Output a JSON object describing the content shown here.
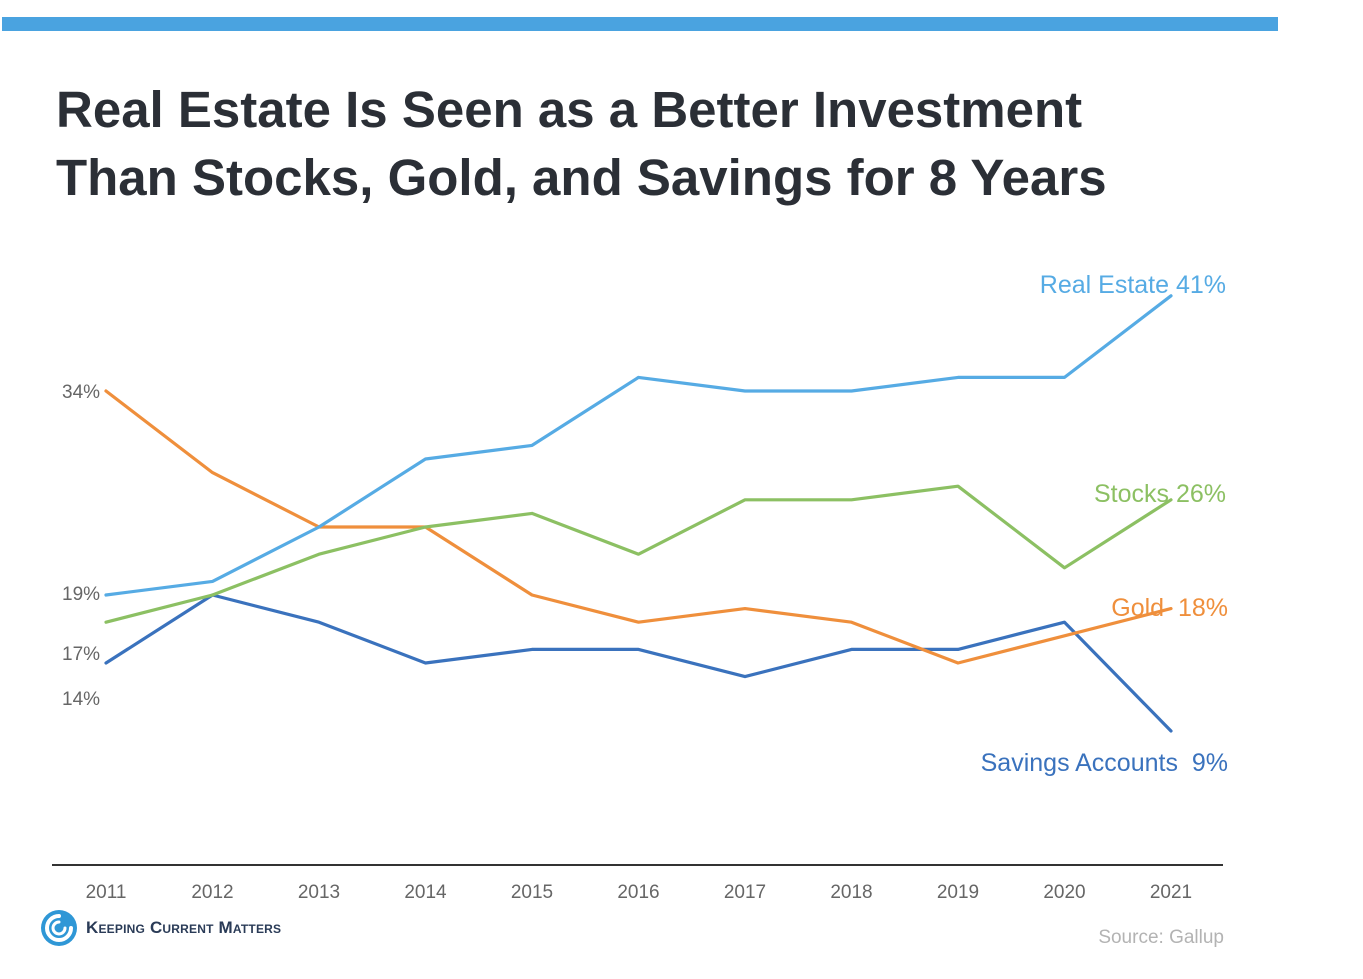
{
  "title_lines": [
    "Real Estate Is Seen as a Better Investment",
    "Than Stocks, Gold, and Savings for 8 Years"
  ],
  "logo": {
    "text": "Keeping Current Matters",
    "icon": "kcm-swirl-icon"
  },
  "source": "Source: Gallup",
  "colors": {
    "accent_bar": "#4aa3e0",
    "real_estate": "#56abe4",
    "stocks": "#8cc063",
    "gold": "#ef8f3c",
    "savings": "#3a72bd",
    "axis": "#333333",
    "tick_text": "#666666"
  },
  "chart_data": {
    "type": "line",
    "title": "Real Estate Is Seen as a Better Investment Than Stocks, Gold, and Savings for 8 Years",
    "xlabel": "",
    "ylabel": "",
    "ylim": [
      5,
      43
    ],
    "grid": false,
    "x": [
      "2011",
      "2012",
      "2013",
      "2014",
      "2015",
      "2016",
      "2017",
      "2018",
      "2019",
      "2020",
      "2021"
    ],
    "series": [
      {
        "name": "Real Estate",
        "label": "Real Estate 41%",
        "color": "#56abe4",
        "values": [
          19,
          20,
          24,
          29,
          30,
          35,
          34,
          34,
          35,
          35,
          41
        ]
      },
      {
        "name": "Stocks",
        "label": "Stocks 26%",
        "color": "#8cc063",
        "values": [
          17,
          19,
          22,
          24,
          25,
          22,
          26,
          26,
          27,
          21,
          26
        ]
      },
      {
        "name": "Gold",
        "label": "Gold  18%",
        "color": "#ef8f3c",
        "values": [
          34,
          28,
          24,
          24,
          19,
          17,
          18,
          17,
          14,
          16,
          18
        ]
      },
      {
        "name": "Savings Accounts",
        "label": "Savings Accounts  9%",
        "color": "#3a72bd",
        "values": [
          14,
          19,
          17,
          14,
          15,
          15,
          13,
          15,
          15,
          17,
          9
        ]
      }
    ],
    "start_labels": [
      {
        "text": "34%",
        "value": 34
      },
      {
        "text": "19%",
        "value": 19
      },
      {
        "text": "17%",
        "value": 17
      },
      {
        "text": "14%",
        "value": 14
      }
    ]
  }
}
